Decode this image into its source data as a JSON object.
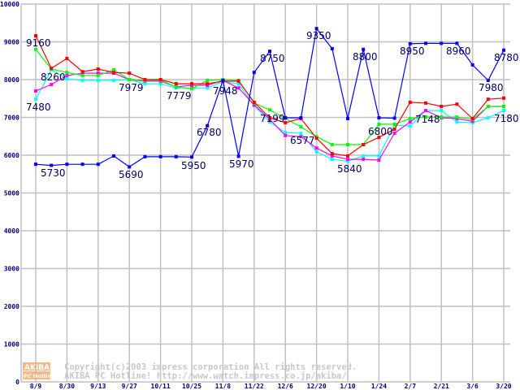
{
  "chart_data": {
    "type": "line",
    "title": "",
    "xlabel": "",
    "ylabel": "",
    "ylim": [
      0,
      10000
    ],
    "yticks": [
      0,
      1000,
      2000,
      3000,
      4000,
      5000,
      6000,
      7000,
      8000,
      9000,
      10000
    ],
    "x_tick_labels": [
      "8/9",
      "8/30",
      "9/13",
      "9/27",
      "10/11",
      "10/25",
      "11/8",
      "11/22",
      "12/6",
      "12/20",
      "1/10",
      "1/24",
      "2/7",
      "2/21",
      "3/6",
      "3/20"
    ],
    "points_per_tick": 2,
    "grid": true,
    "series": [
      {
        "name": "blue",
        "color": "#0000ff",
        "values": [
          5760,
          5730,
          5760,
          5760,
          5760,
          5980,
          5690,
          5960,
          5960,
          5960,
          5950,
          6780,
          7980,
          5970,
          8190,
          8750,
          6990,
          6990,
          9350,
          8820,
          6970,
          8800,
          6990,
          6980,
          8950,
          8960,
          8960,
          8960,
          8390,
          7980,
          8780
        ]
      },
      {
        "name": "red",
        "color": "#ff0000",
        "values": [
          9160,
          8300,
          8560,
          8210,
          8280,
          8190,
          8170,
          8000,
          8000,
          7890,
          7890,
          7890,
          7960,
          7960,
          7400,
          6990,
          6860,
          6970,
          6450,
          6040,
          5980,
          6280,
          6470,
          6690,
          7400,
          7380,
          7290,
          7350,
          6970,
          7480,
          7510
        ]
      },
      {
        "name": "green",
        "color": "#00ff00",
        "values": [
          8800,
          8280,
          8190,
          8110,
          8110,
          8260,
          8000,
          7980,
          7980,
          7810,
          7760,
          7980,
          8000,
          7980,
          7380,
          7199,
          6970,
          6750,
          6490,
          6280,
          6280,
          6280,
          6820,
          6820,
          6970,
          7010,
          7010,
          7010,
          6950,
          7290,
          7290
        ]
      },
      {
        "name": "magenta",
        "color": "#ff00ff",
        "values": [
          7700,
          7870,
          8110,
          8170,
          8170,
          8170,
          8000,
          7960,
          7960,
          7810,
          7850,
          7850,
          7980,
          7780,
          7330,
          6950,
          6520,
          6490,
          6190,
          5980,
          5890,
          5890,
          5870,
          6580,
          6880,
          7180,
          6990,
          6970,
          6900,
          7290,
          7290
        ]
      },
      {
        "name": "cyan",
        "color": "#00ffff",
        "values": [
          7480,
          8260,
          8020,
          7980,
          7980,
          7980,
          8000,
          7890,
          7890,
          7780,
          7779,
          7780,
          7948,
          7890,
          7310,
          6880,
          6600,
          6577,
          6090,
          5890,
          5840,
          5980,
          5980,
          6800,
          6770,
          7180,
          7180,
          6880,
          6860,
          6990,
          7180
        ]
      }
    ],
    "annotations": [
      "9160",
      "8260",
      "7480",
      "7979",
      "7779",
      "7948",
      "5730",
      "5690",
      "5950",
      "6780",
      "5970",
      "8750",
      "7199",
      "6577",
      "9350",
      "5840",
      "8800",
      "6800",
      "8950",
      "7148",
      "8960",
      "7980",
      "8780",
      "7180"
    ]
  },
  "watermark": {
    "logo_top": "AKIBA",
    "logo_bottom": "PC Hotline!",
    "line1": "Copyright(c)2003 impress corporation All rights reserved.",
    "line2": "AKIBA PC Hotline!  http://www.watch.impress.co.jp/akiba/",
    "logo_color": "#f4a060"
  }
}
